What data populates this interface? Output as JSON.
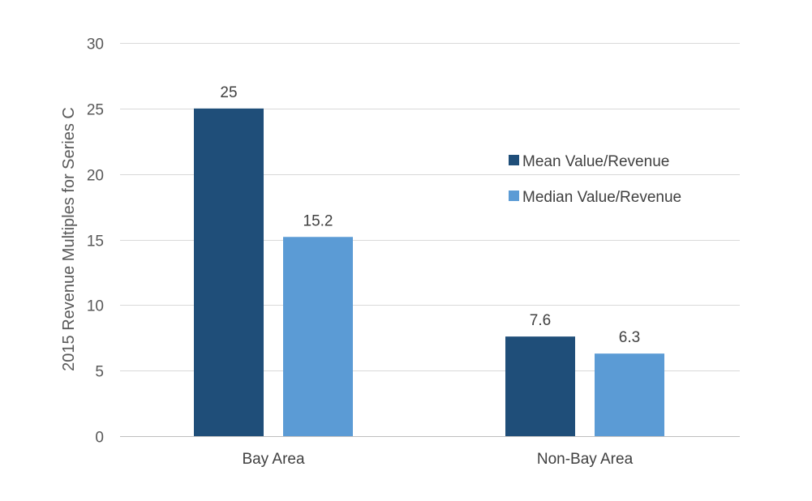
{
  "chart_data": {
    "type": "bar",
    "title": "",
    "xlabel": "",
    "ylabel": "2015 Revenue Multiples for Series C",
    "categories": [
      "Bay Area",
      "Non-Bay Area"
    ],
    "series": [
      {
        "name": "Mean Value/Revenue",
        "values": [
          25,
          7.6
        ],
        "color": "#1f4e79"
      },
      {
        "name": "Median Value/Revenue",
        "values": [
          15.2,
          6.3
        ],
        "color": "#5b9bd5"
      }
    ],
    "data_labels": [
      [
        "25",
        "7.6"
      ],
      [
        "15.2",
        "6.3"
      ]
    ],
    "ylim": [
      0,
      30
    ],
    "yticks": [
      0,
      5,
      10,
      15,
      20,
      25,
      30
    ],
    "grid": true,
    "legend_position": "right"
  }
}
